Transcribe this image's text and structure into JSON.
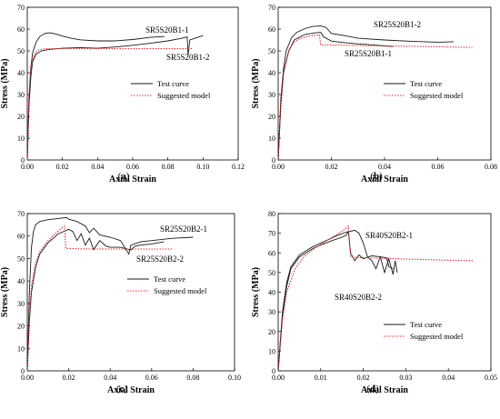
{
  "colors": {
    "test": "#1a1a1a",
    "model": "#e03030",
    "axis": "#000000"
  },
  "chart_data": [
    {
      "type": "line",
      "panel_label": "(a)",
      "xlabel": "Axial Strain",
      "ylabel": "Stress (MPa)",
      "xlim": [
        0,
        0.12
      ],
      "ylim": [
        0,
        70
      ],
      "xticks": [
        "0.00",
        "0.02",
        "0.04",
        "0.06",
        "0.08",
        "0.10",
        "0.12"
      ],
      "yticks": [
        "0",
        "10",
        "20",
        "30",
        "40",
        "50",
        "60",
        "70"
      ],
      "legend": {
        "position": "center-right",
        "entries": [
          "Test curve",
          "Suggested model"
        ]
      },
      "annotations": [
        "SR5S20B1-1",
        "SR5S20B1-2"
      ],
      "series": [
        {
          "name": "Test curve",
          "style": "solid",
          "x": [
            0,
            0.001,
            0.002,
            0.003,
            0.005,
            0.007,
            0.01,
            0.013,
            0.016,
            0.02,
            0.025,
            0.03,
            0.04,
            0.05,
            0.06,
            0.07,
            0.078
          ],
          "y": [
            0,
            28,
            42,
            49,
            54,
            56.5,
            58,
            58.3,
            57.8,
            56.8,
            55.8,
            55.1,
            54.6,
            54.6,
            55.2,
            56.2,
            56.6
          ]
        },
        {
          "name": "Test curve",
          "style": "solid",
          "x": [
            0,
            0.001,
            0.002,
            0.003,
            0.005,
            0.008,
            0.012,
            0.02,
            0.03,
            0.04,
            0.05,
            0.06,
            0.07,
            0.08,
            0.088,
            0.091,
            0.0915,
            0.0925,
            0.1
          ],
          "y": [
            0,
            25,
            38,
            45,
            48.5,
            50,
            50.6,
            51.2,
            51.5,
            51.2,
            51.8,
            52.6,
            53.5,
            54.6,
            55.8,
            56.4,
            48,
            55,
            57
          ]
        },
        {
          "name": "Suggested model",
          "style": "dotted",
          "x": [
            0,
            0.001,
            0.002,
            0.004,
            0.006,
            0.01,
            0.02,
            0.04,
            0.06,
            0.08,
            0.094
          ],
          "y": [
            0,
            30,
            43,
            48.5,
            50.3,
            51,
            51,
            51,
            51,
            51,
            51
          ]
        }
      ]
    },
    {
      "type": "line",
      "panel_label": "(b)",
      "xlabel": "Axial Strain",
      "ylabel": "Stress (MPa)",
      "xlim": [
        0,
        0.08
      ],
      "ylim": [
        0,
        70
      ],
      "xticks": [
        "0.00",
        "0.02",
        "0.04",
        "0.06",
        "0.08"
      ],
      "yticks": [
        "0",
        "10",
        "20",
        "30",
        "40",
        "50",
        "60",
        "70"
      ],
      "legend": {
        "position": "center-right",
        "entries": [
          "Test curve",
          "Suggested model"
        ]
      },
      "annotations": [
        "SR25S20B1-2",
        "SR25S20B1-1"
      ],
      "series": [
        {
          "name": "Test curve",
          "style": "solid",
          "x": [
            0,
            0.001,
            0.002,
            0.003,
            0.005,
            0.007,
            0.01,
            0.013,
            0.016,
            0.018,
            0.02,
            0.025,
            0.03,
            0.04,
            0.05,
            0.06,
            0.066
          ],
          "y": [
            0,
            28,
            42,
            50,
            56,
            58.5,
            60.2,
            61.2,
            61.4,
            60.8,
            58,
            57,
            55.8,
            55,
            54.4,
            54,
            54.2
          ]
        },
        {
          "name": "Test curve",
          "style": "solid",
          "x": [
            0,
            0.001,
            0.002,
            0.004,
            0.006,
            0.01,
            0.014,
            0.016,
            0.017,
            0.02,
            0.025,
            0.03,
            0.035,
            0.04,
            0.043
          ],
          "y": [
            0,
            25,
            40,
            50,
            55,
            57.5,
            58.3,
            58.5,
            56.5,
            54.5,
            53.8,
            53.2,
            52.8,
            52.3,
            52
          ]
        },
        {
          "name": "Suggested model",
          "style": "dotted",
          "x": [
            0,
            0.001,
            0.002,
            0.004,
            0.006,
            0.008,
            0.01,
            0.013,
            0.0155,
            0.016,
            0.02,
            0.03,
            0.04,
            0.05,
            0.06,
            0.073
          ],
          "y": [
            0,
            26,
            40,
            50.5,
            54,
            55.5,
            56.3,
            57,
            57.5,
            52.8,
            52.7,
            52.5,
            52.3,
            52.1,
            51.9,
            51.6
          ]
        }
      ]
    },
    {
      "type": "line",
      "panel_label": "(c)",
      "xlabel": "Axial Strain",
      "ylabel": "Stress (MPa)",
      "xlim": [
        0,
        0.1
      ],
      "ylim": [
        0,
        70
      ],
      "xticks": [
        "0.00",
        "0.02",
        "0.04",
        "0.06",
        "0.08",
        "0.10"
      ],
      "yticks": [
        "0",
        "10",
        "20",
        "30",
        "40",
        "50",
        "60",
        "70"
      ],
      "legend": {
        "position": "center-right",
        "entries": [
          "Test curve",
          "Suggested model"
        ]
      },
      "annotations": [
        "SR25S20B2-1",
        "SR25S20B2-2"
      ],
      "series": [
        {
          "name": "Test curve",
          "style": "solid",
          "x": [
            0,
            0.001,
            0.002,
            0.003,
            0.004,
            0.006,
            0.01,
            0.015,
            0.019,
            0.02,
            0.024,
            0.028,
            0.03,
            0.032,
            0.035,
            0.04,
            0.045,
            0.049,
            0.05,
            0.055,
            0.06,
            0.07,
            0.08
          ],
          "y": [
            0,
            35,
            55,
            62,
            65,
            66.5,
            67.3,
            67.8,
            68.2,
            67.5,
            66.5,
            64.5,
            61.5,
            63.5,
            60.5,
            59.5,
            58,
            52,
            56,
            57.5,
            58,
            59,
            59.5
          ]
        },
        {
          "name": "Test curve",
          "style": "solid",
          "x": [
            0,
            0.001,
            0.002,
            0.004,
            0.006,
            0.01,
            0.015,
            0.02,
            0.022,
            0.024,
            0.026,
            0.028,
            0.03,
            0.032,
            0.035,
            0.038,
            0.04,
            0.045,
            0.05,
            0.052,
            0.055,
            0.06,
            0.066
          ],
          "y": [
            0,
            22,
            35,
            46,
            52,
            57,
            61,
            63,
            62,
            58,
            61,
            56,
            59,
            54,
            58,
            55.5,
            55,
            55,
            53.8,
            55.5,
            56,
            56.5,
            57.5
          ]
        },
        {
          "name": "Suggested model",
          "style": "dotted",
          "x": [
            0,
            0.001,
            0.002,
            0.004,
            0.006,
            0.01,
            0.014,
            0.018,
            0.0185,
            0.025,
            0.04,
            0.055,
            0.07
          ],
          "y": [
            0,
            25,
            38,
            48,
            53,
            58,
            61.5,
            64.5,
            54.5,
            54.3,
            54.2,
            54.2,
            54.2
          ]
        }
      ]
    },
    {
      "type": "line",
      "panel_label": "(d)",
      "xlabel": "Axial Strain",
      "ylabel": "Stress (MPa)",
      "xlim": [
        0,
        0.05
      ],
      "ylim": [
        0,
        80
      ],
      "xticks": [
        "0.00",
        "0.01",
        "0.02",
        "0.03",
        "0.04",
        "0.05"
      ],
      "yticks": [
        "0",
        "10",
        "20",
        "30",
        "40",
        "50",
        "60",
        "70",
        "80"
      ],
      "legend": {
        "position": "bottom-right",
        "entries": [
          "Test curve",
          "Suggested model"
        ]
      },
      "annotations": [
        "SR40S20B2-1",
        "SR40S20B2-2"
      ],
      "series": [
        {
          "name": "Test curve",
          "style": "solid",
          "x": [
            0,
            0.001,
            0.002,
            0.003,
            0.005,
            0.008,
            0.01,
            0.012,
            0.014,
            0.016,
            0.018,
            0.019,
            0.02,
            0.021,
            0.022,
            0.023,
            0.024,
            0.025,
            0.026,
            0.027,
            0.0275,
            0.028
          ],
          "y": [
            0,
            30,
            45,
            53,
            59,
            63,
            65,
            67,
            69,
            70.5,
            71.5,
            70,
            65,
            58,
            56,
            52,
            58,
            50,
            57,
            49,
            56,
            50
          ]
        },
        {
          "name": "Test curve",
          "style": "solid",
          "x": [
            0,
            0.001,
            0.002,
            0.003,
            0.005,
            0.008,
            0.01,
            0.013,
            0.015,
            0.016,
            0.0165,
            0.017,
            0.018,
            0.019,
            0.02,
            0.022,
            0.024,
            0.0255,
            0.026,
            0.027
          ],
          "y": [
            0,
            28,
            43,
            52,
            58,
            62,
            64,
            66.5,
            68,
            69,
            71,
            60,
            56,
            59,
            57,
            58.5,
            58,
            57.5,
            53,
            52
          ]
        },
        {
          "name": "Suggested model",
          "style": "dotted",
          "x": [
            0,
            0.001,
            0.002,
            0.004,
            0.006,
            0.009,
            0.012,
            0.015,
            0.0165,
            0.017,
            0.02,
            0.025,
            0.03,
            0.035,
            0.04,
            0.046
          ],
          "y": [
            0,
            26,
            40,
            52,
            58,
            63,
            67,
            71,
            73.5,
            58,
            57.5,
            57.2,
            56.9,
            56.6,
            56.3,
            56
          ]
        }
      ]
    }
  ]
}
